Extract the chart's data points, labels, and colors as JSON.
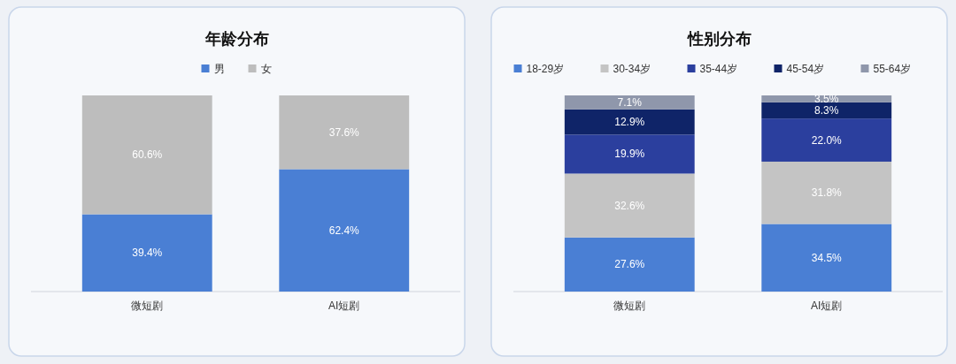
{
  "chart_data": [
    {
      "type": "bar",
      "title": "年龄分布",
      "categories": [
        "微短剧",
        "AI短剧"
      ],
      "stacked": true,
      "legend": "top",
      "series": [
        {
          "name": "男",
          "color": "#4a7fd4",
          "values": [
            39.4,
            62.4
          ],
          "value_labels": [
            "39.4%",
            "62.4%"
          ]
        },
        {
          "name": "女",
          "color": "#bdbdbd",
          "values": [
            60.6,
            37.6
          ],
          "value_labels": [
            "60.6%",
            "37.6%"
          ]
        }
      ]
    },
    {
      "type": "bar",
      "title": "性别分布",
      "categories": [
        "微短剧",
        "AI短剧"
      ],
      "stacked": true,
      "legend": "top",
      "series": [
        {
          "name": "18-29岁",
          "color": "#4a7fd4",
          "values": [
            27.6,
            34.5
          ],
          "value_labels": [
            "27.6%",
            "34.5%"
          ]
        },
        {
          "name": "30-34岁",
          "color": "#c4c4c4",
          "values": [
            32.6,
            31.8
          ],
          "value_labels": [
            "32.6%",
            "31.8%"
          ]
        },
        {
          "name": "35-44岁",
          "color": "#2b3f9e",
          "values": [
            19.9,
            22.0
          ],
          "value_labels": [
            "19.9%",
            "22.0%"
          ]
        },
        {
          "name": "45-54岁",
          "color": "#0f2468",
          "values": [
            12.9,
            8.3
          ],
          "value_labels": [
            "12.9%",
            "8.3%"
          ]
        },
        {
          "name": "55-64岁",
          "color": "#8f97ab",
          "values": [
            7.1,
            3.5
          ],
          "value_labels": [
            "7.1%",
            "3.5%"
          ]
        }
      ]
    }
  ]
}
